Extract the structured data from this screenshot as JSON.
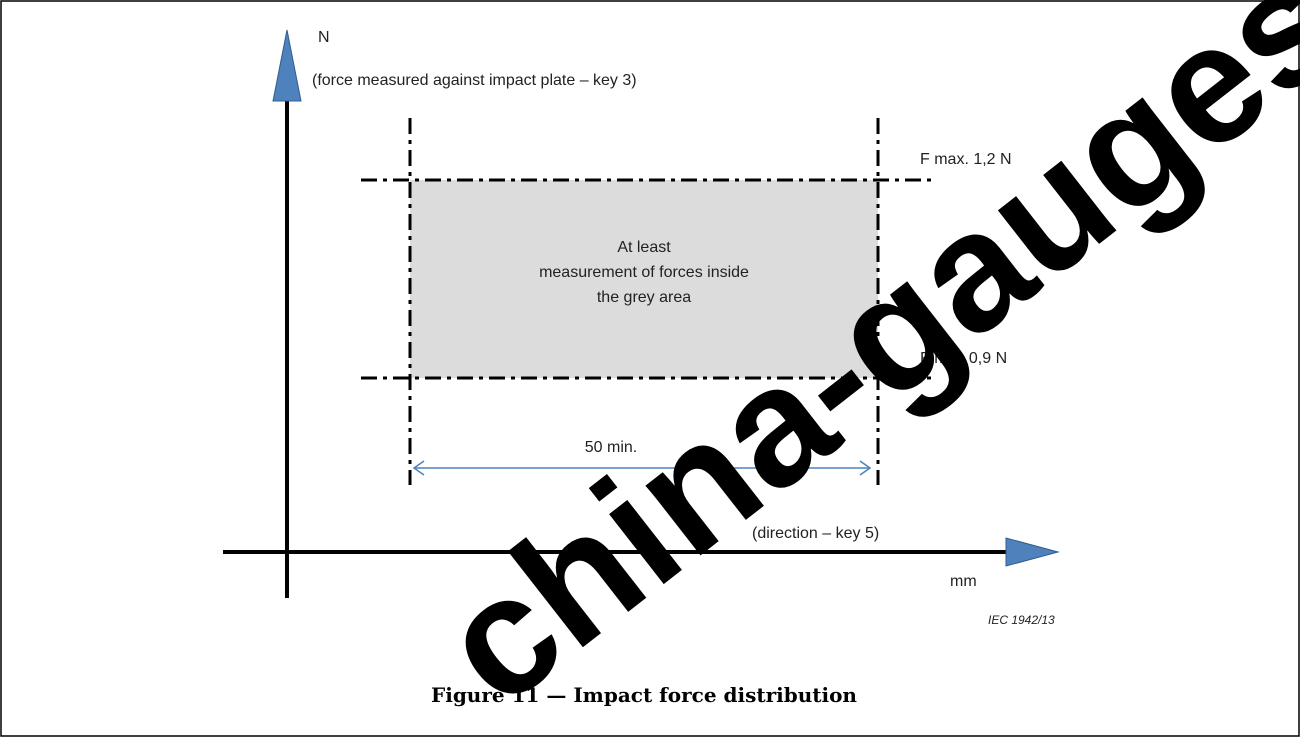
{
  "diagram": {
    "y_axis": {
      "unit": "N",
      "description": "(force measured against impact plate – key 3)"
    },
    "x_axis": {
      "unit": "mm",
      "direction": "(direction – key 5)"
    },
    "limits": {
      "upper": "F max. 1,2 N",
      "lower": "F min. 0,9 N"
    },
    "region_text": [
      "At least",
      "measurement of forces inside",
      "the grey area"
    ],
    "span_label": "50 min.",
    "reference": "IEC  1942/13",
    "caption": "Figure 11 — Impact force distribution",
    "watermark": "china-gauges.com",
    "colors": {
      "arrow_fill": "#4f81bd",
      "arrow_stroke": "#2f5f8f",
      "grey_area": "#dcdcdc",
      "dimension_line": "#4f81bd",
      "watermark": "#000000"
    }
  }
}
